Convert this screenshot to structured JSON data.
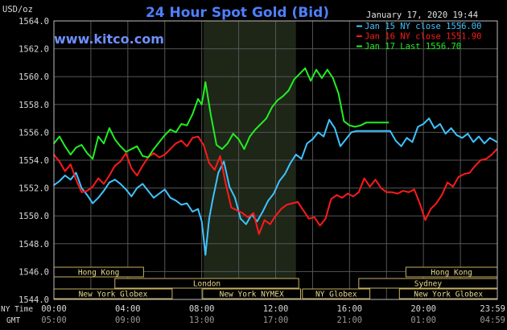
{
  "chart_data": {
    "type": "line",
    "title": "24 Hour Spot Gold (Bid)",
    "ylabel": "USD/oz",
    "watermark": "www.kitco.com",
    "date": "January 17, 2020 19:44",
    "ylim": [
      1544.0,
      1564.0
    ],
    "yticks": [
      "1564.0",
      "1562.0",
      "1560.0",
      "1558.0",
      "1556.0",
      "1554.0",
      "1552.0",
      "1550.0",
      "1548.0",
      "1546.0",
      "1544.0"
    ],
    "x_row_label": "NY Time",
    "x_row2_label": "GMT",
    "x_ny_ticks": [
      "00:00",
      "04:00",
      "08:00",
      "12:00",
      "16:00",
      "20:00",
      "23:59"
    ],
    "x_gmt_ticks": [
      "05:00",
      "09:00",
      "13:00",
      "17:00",
      "21:00",
      "01:00",
      "04:59"
    ],
    "colors": {
      "background": "#000000",
      "plot_bg": "#000000",
      "grid": "#555555",
      "shade": "#1e2618",
      "axis_text": "#d8d8d8",
      "title": "#4f7fff",
      "watermark": "#6f8fff",
      "session_fill": "#000000",
      "session_border": "#c8b060"
    },
    "series": [
      {
        "name": "Jan 15 NY close 1556.00",
        "color": "#3fc3ff",
        "x": [
          0,
          0.3,
          0.6,
          0.9,
          1.2,
          1.5,
          1.8,
          2.1,
          2.4,
          2.7,
          3.0,
          3.3,
          3.6,
          3.9,
          4.2,
          4.5,
          4.8,
          5.1,
          5.4,
          5.7,
          6.0,
          6.3,
          6.6,
          6.9,
          7.2,
          7.5,
          7.8,
          8.0,
          8.2,
          8.4,
          8.6,
          8.9,
          9.2,
          9.5,
          9.8,
          10.1,
          10.4,
          10.7,
          11.0,
          11.3,
          11.6,
          11.9,
          12.2,
          12.5,
          12.8,
          13.1,
          13.4,
          13.7,
          14.0,
          14.3,
          14.6,
          14.9,
          15.2,
          15.5,
          15.8,
          16.1,
          16.4,
          16.7,
          17.0,
          17.3,
          17.6,
          17.9,
          18.2,
          18.5,
          18.8,
          19.1,
          19.4,
          19.7,
          20.0,
          20.3,
          20.6,
          20.9,
          21.2,
          21.5,
          21.8,
          22.1,
          22.4,
          22.7,
          23.0,
          23.3,
          23.6,
          23.98
        ],
        "values": [
          1552.2,
          1552.5,
          1552.9,
          1552.6,
          1553.1,
          1552.0,
          1551.5,
          1550.9,
          1551.3,
          1551.8,
          1552.4,
          1552.6,
          1552.3,
          1551.9,
          1551.4,
          1552.0,
          1552.3,
          1551.8,
          1551.3,
          1551.6,
          1551.9,
          1551.3,
          1551.1,
          1550.8,
          1550.9,
          1550.3,
          1550.5,
          1549.6,
          1547.2,
          1549.8,
          1551.2,
          1553.1,
          1553.9,
          1552.1,
          1551.3,
          1549.8,
          1549.4,
          1550.1,
          1549.6,
          1550.3,
          1551.1,
          1551.6,
          1552.5,
          1553.0,
          1553.8,
          1554.4,
          1554.1,
          1555.2,
          1555.5,
          1556.0,
          1555.7,
          1556.9,
          1556.3,
          1555.0,
          1555.5,
          1556.0,
          1556.1,
          1556.1,
          1556.1,
          1556.1,
          1556.1,
          1556.1,
          1556.1,
          1555.4,
          1555.0,
          1555.6,
          1555.3,
          1556.4,
          1556.6,
          1557.0,
          1556.3,
          1556.6,
          1555.9,
          1556.3,
          1555.8,
          1555.6,
          1555.9,
          1555.3,
          1555.7,
          1555.2,
          1555.6,
          1555.3
        ]
      },
      {
        "name": "Jan 16 NY close 1551.90",
        "color": "#ff1a1a",
        "x": [
          0,
          0.3,
          0.6,
          0.9,
          1.2,
          1.5,
          1.8,
          2.1,
          2.4,
          2.7,
          3.0,
          3.3,
          3.6,
          3.9,
          4.2,
          4.5,
          4.8,
          5.1,
          5.4,
          5.7,
          6.0,
          6.3,
          6.6,
          6.9,
          7.2,
          7.5,
          7.8,
          8.1,
          8.4,
          8.7,
          9.0,
          9.3,
          9.6,
          9.9,
          10.2,
          10.5,
          10.8,
          11.1,
          11.4,
          11.7,
          12.0,
          12.3,
          12.6,
          12.9,
          13.2,
          13.5,
          13.8,
          14.1,
          14.4,
          14.7,
          15.0,
          15.3,
          15.6,
          15.9,
          16.2,
          16.5,
          16.8,
          17.1,
          17.4,
          17.7,
          18.0,
          18.3,
          18.6,
          18.9,
          19.2,
          19.5,
          19.8,
          20.1,
          20.4,
          20.7,
          21.0,
          21.3,
          21.6,
          21.9,
          22.2,
          22.5,
          22.8,
          23.1,
          23.4,
          23.7,
          23.98
        ],
        "values": [
          1554.4,
          1553.9,
          1553.2,
          1553.7,
          1552.6,
          1551.7,
          1551.8,
          1552.1,
          1552.7,
          1552.3,
          1552.9,
          1553.6,
          1553.9,
          1554.5,
          1553.4,
          1552.9,
          1553.6,
          1554.2,
          1554.5,
          1554.2,
          1554.4,
          1554.8,
          1555.2,
          1555.4,
          1555.0,
          1555.6,
          1555.7,
          1555.1,
          1553.8,
          1553.3,
          1554.3,
          1552.3,
          1550.6,
          1550.4,
          1550.2,
          1549.9,
          1550.2,
          1548.7,
          1549.7,
          1549.4,
          1550.0,
          1550.5,
          1550.8,
          1550.9,
          1551.0,
          1550.4,
          1549.8,
          1549.9,
          1549.3,
          1549.8,
          1551.2,
          1551.5,
          1551.3,
          1551.6,
          1551.4,
          1551.7,
          1552.7,
          1552.1,
          1552.6,
          1552.0,
          1551.7,
          1551.7,
          1551.6,
          1551.8,
          1551.7,
          1551.9,
          1550.9,
          1549.7,
          1550.5,
          1550.9,
          1551.5,
          1552.4,
          1552.1,
          1552.8,
          1553.0,
          1553.1,
          1553.6,
          1554.0,
          1554.1,
          1554.4,
          1554.8
        ]
      },
      {
        "name": "Jan 17 Last 1556.70",
        "color": "#22ee22",
        "x": [
          0,
          0.3,
          0.6,
          0.9,
          1.2,
          1.5,
          1.8,
          2.1,
          2.4,
          2.7,
          3.0,
          3.3,
          3.6,
          3.9,
          4.2,
          4.5,
          4.8,
          5.1,
          5.4,
          5.7,
          6.0,
          6.3,
          6.6,
          6.9,
          7.2,
          7.5,
          7.8,
          8.0,
          8.2,
          8.5,
          8.8,
          9.1,
          9.4,
          9.7,
          10.0,
          10.3,
          10.6,
          10.9,
          11.2,
          11.5,
          11.8,
          12.1,
          12.4,
          12.7,
          13.0,
          13.3,
          13.6,
          13.9,
          14.2,
          14.5,
          14.8,
          15.1,
          15.4,
          15.7,
          16.0,
          16.3,
          16.6,
          16.9,
          17.2,
          17.5,
          17.8,
          18.1
        ],
        "values": [
          1555.2,
          1555.7,
          1555.0,
          1554.4,
          1554.9,
          1555.1,
          1554.5,
          1554.1,
          1555.7,
          1555.2,
          1556.3,
          1555.5,
          1555.0,
          1554.6,
          1554.8,
          1555.0,
          1554.3,
          1554.2,
          1554.8,
          1555.3,
          1555.8,
          1556.2,
          1556.0,
          1556.6,
          1556.5,
          1557.3,
          1558.4,
          1558.0,
          1559.6,
          1557.2,
          1555.1,
          1554.8,
          1555.2,
          1555.9,
          1555.5,
          1554.8,
          1555.7,
          1556.2,
          1556.6,
          1557.0,
          1557.8,
          1558.3,
          1558.6,
          1559.0,
          1559.8,
          1560.2,
          1560.6,
          1559.7,
          1560.5,
          1559.9,
          1560.5,
          1559.9,
          1558.8,
          1556.8,
          1556.5,
          1556.4,
          1556.5,
          1556.7,
          1556.7,
          1556.7,
          1556.7,
          1556.7
        ]
      }
    ],
    "sessions": [
      {
        "label": "Hong Kong",
        "from": 0,
        "to": 4.85,
        "row": 0
      },
      {
        "label": "London",
        "from": 3.3,
        "to": 13.25,
        "row": 1
      },
      {
        "label": "New York Globex",
        "from": 0,
        "to": 6.4,
        "row": 2
      },
      {
        "label": "New York NYMEX",
        "from": 8.05,
        "to": 13.35,
        "row": 2
      },
      {
        "label": "NY Globex",
        "from": 13.45,
        "to": 17.1,
        "row": 2
      },
      {
        "label": "Hong Kong",
        "from": 19.05,
        "to": 24,
        "row": 0
      },
      {
        "label": "Sydney",
        "from": 16.5,
        "to": 24,
        "row": 1
      },
      {
        "label": "New York Globex",
        "from": 18.7,
        "to": 24,
        "row": 2
      }
    ],
    "shade_from": 8.1,
    "shade_to": 13.1,
    "grid": true,
    "legend_position": "top-right"
  }
}
